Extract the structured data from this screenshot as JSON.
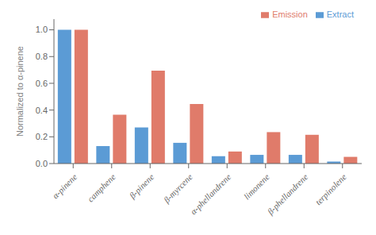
{
  "chart_data": {
    "type": "bar",
    "categories": [
      "α-pinene",
      "camphene",
      "β-pinene",
      "β-myrcene",
      "α-phellandrene",
      "limonene",
      "β-phellandrene",
      "terpinolene"
    ],
    "series": [
      {
        "name": "Extract",
        "color": "#5B9BD5",
        "values": [
          1.0,
          0.13,
          0.27,
          0.155,
          0.055,
          0.065,
          0.065,
          0.015
        ]
      },
      {
        "name": "Emission",
        "color": "#E07B6A",
        "values": [
          1.0,
          0.365,
          0.695,
          0.445,
          0.09,
          0.235,
          0.215,
          0.05
        ]
      }
    ],
    "ylabel": "Normalized to α-pinene",
    "ylim": [
      0,
      1.08
    ],
    "yticks": [
      {
        "value": 0,
        "label": "0.0"
      },
      0.2,
      0.4,
      0.6,
      0.8,
      {
        "value": 1,
        "label": "1.0"
      }
    ],
    "grid": false,
    "legend": "upper right"
  }
}
